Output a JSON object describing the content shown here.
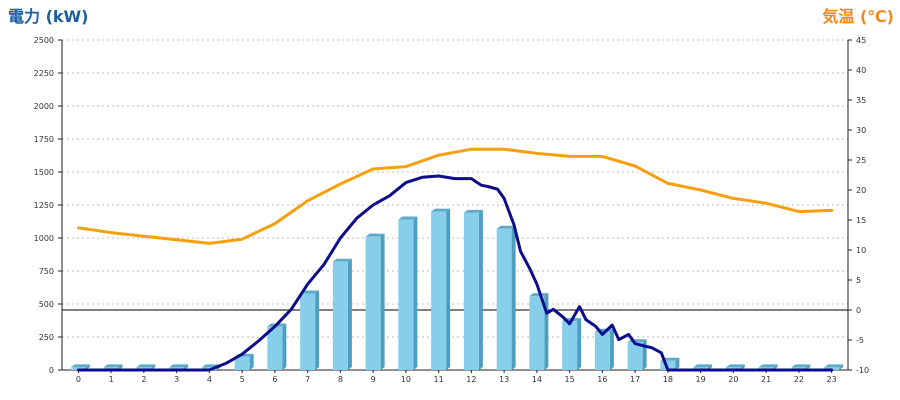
{
  "chart_data": {
    "type": "bar",
    "categories": [
      "0",
      "1",
      "2",
      "3",
      "4",
      "5",
      "6",
      "7",
      "8",
      "9",
      "10",
      "11",
      "12",
      "13",
      "14",
      "15",
      "16",
      "17",
      "18",
      "19",
      "20",
      "21",
      "22",
      "23"
    ],
    "left_axis": {
      "title": "電力 (kW)",
      "color": "#1a5fa0",
      "ylim": [
        0,
        2500
      ],
      "ticks": [
        0,
        250,
        500,
        750,
        1000,
        1250,
        1500,
        1750,
        2000,
        2250,
        2500
      ]
    },
    "right_axis": {
      "title": "気温 (℃)",
      "color": "#f08a1e",
      "ylim": [
        -10,
        45
      ],
      "ticks": [
        -10,
        -5,
        0,
        5,
        10,
        15,
        20,
        25,
        30,
        35,
        40,
        45
      ]
    },
    "grid": true,
    "series": [
      {
        "type": "bar",
        "axis": "left",
        "color": "#87ceeb",
        "values": [
          20,
          20,
          20,
          20,
          20,
          100,
          330,
          580,
          820,
          1010,
          1140,
          1200,
          1190,
          1070,
          560,
          370,
          290,
          210,
          70,
          20,
          20,
          20,
          20,
          20
        ]
      },
      {
        "type": "line",
        "axis": "left",
        "color": "#0d0d8c",
        "x": [
          0,
          1,
          2,
          3,
          4,
          4.5,
          5,
          5.5,
          6,
          6.5,
          7,
          7.5,
          8,
          8.5,
          9,
          9.5,
          10,
          10.5,
          11,
          11.5,
          12,
          12.3,
          12.5,
          12.8,
          13,
          13.3,
          13.5,
          13.8,
          14,
          14.3,
          14.5,
          14.8,
          15,
          15.3,
          15.5,
          15.8,
          16,
          16.3,
          16.5,
          16.8,
          17,
          17.3,
          17.5,
          17.8,
          18,
          19,
          20,
          21,
          22,
          23
        ],
        "values": [
          0,
          0,
          0,
          0,
          0,
          50,
          120,
          220,
          330,
          460,
          650,
          800,
          1000,
          1150,
          1250,
          1320,
          1420,
          1460,
          1470,
          1450,
          1450,
          1400,
          1390,
          1370,
          1300,
          1100,
          900,
          760,
          650,
          430,
          460,
          400,
          350,
          480,
          380,
          330,
          270,
          340,
          230,
          270,
          200,
          180,
          170,
          130,
          0,
          0,
          0,
          0,
          0,
          0
        ]
      },
      {
        "type": "line",
        "axis": "right",
        "color": "#f5a00f",
        "values": [
          13.7,
          12.9,
          12.3,
          11.7,
          11.1,
          11.8,
          14.4,
          18.2,
          21.0,
          23.5,
          23.9,
          25.8,
          26.8,
          26.8,
          26.1,
          25.6,
          25.6,
          24.0,
          21.1,
          20.0,
          18.6,
          17.8,
          16.4,
          16.6
        ]
      }
    ],
    "zero_line_right": 0
  }
}
